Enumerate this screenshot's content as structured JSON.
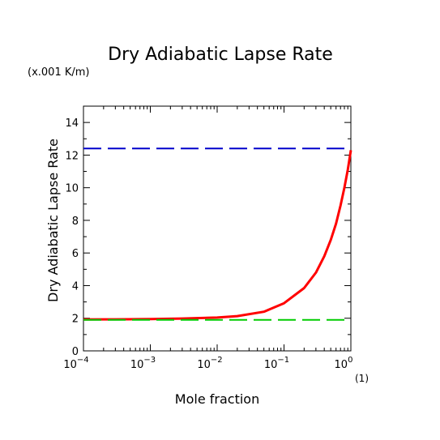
{
  "chart_data": {
    "type": "line",
    "title": "Dry Adiabatic Lapse Rate",
    "unit_note": "(x.001 K/m)",
    "xlabel": "Mole fraction",
    "x_unit": "(1)",
    "ylabel": "Dry Adiabatic Lapse Rate",
    "x_scale": "log",
    "xlim": [
      0.0001,
      1
    ],
    "ylim": [
      0,
      15
    ],
    "x_ticks": [
      0.0001,
      0.001,
      0.01,
      0.1,
      1
    ],
    "x_tick_labels": [
      {
        "base": "10",
        "exp": "−4"
      },
      {
        "base": "10",
        "exp": "−3"
      },
      {
        "base": "10",
        "exp": "−2"
      },
      {
        "base": "10",
        "exp": "−1"
      },
      {
        "base": "10",
        "exp": "0"
      }
    ],
    "y_ticks": [
      0,
      2,
      4,
      6,
      8,
      10,
      12,
      14
    ],
    "y_tick_labels": [
      "0",
      "2",
      "4",
      "6",
      "8",
      "10",
      "12",
      "14"
    ],
    "grid": false,
    "series": [
      {
        "color": "#ff0000",
        "style": "solid",
        "x": [
          0.0001,
          0.0003,
          0.001,
          0.003,
          0.01,
          0.02,
          0.05,
          0.1,
          0.2,
          0.3,
          0.4,
          0.5,
          0.6,
          0.7,
          0.8,
          0.9,
          1.0
        ],
        "y": [
          1.92,
          1.93,
          1.95,
          1.98,
          2.04,
          2.13,
          2.4,
          2.92,
          3.85,
          4.8,
          5.8,
          6.8,
          7.8,
          8.9,
          10.0,
          11.1,
          12.3
        ]
      },
      {
        "color": "#0000cc",
        "style": "dashed",
        "x": [
          0.0001,
          1.0
        ],
        "y": [
          12.4,
          12.4
        ]
      },
      {
        "color": "#00cc00",
        "style": "dashed",
        "x": [
          0.0001,
          1.0
        ],
        "y": [
          1.9,
          1.9
        ]
      }
    ]
  }
}
